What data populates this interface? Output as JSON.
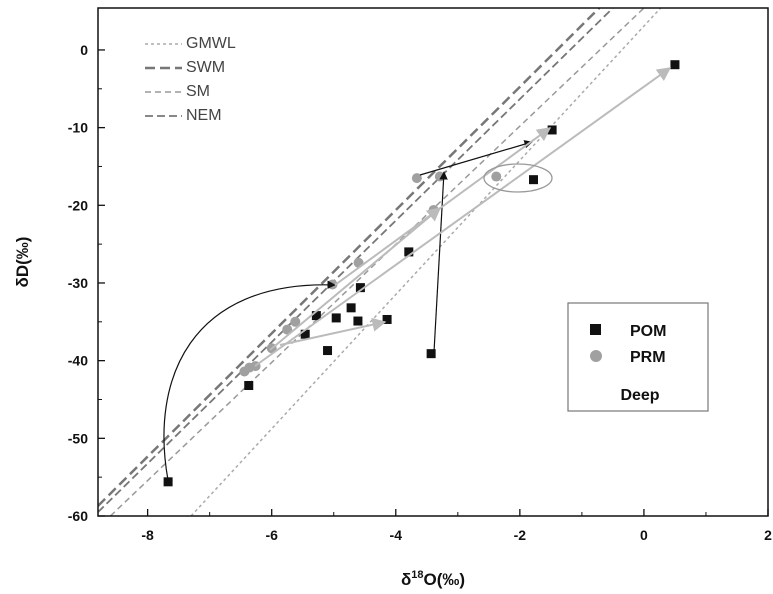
{
  "chart_data": {
    "type": "scatter",
    "xlabel": {
      "prefix": "δ",
      "sup": "18",
      "text": "O(‰)"
    },
    "ylabel": "δD(‰)",
    "xlim": [
      -8.8,
      2
    ],
    "ylim": [
      -60,
      5.4
    ],
    "xticks": [
      -8,
      -6,
      -4,
      -2,
      0,
      2
    ],
    "yticks": [
      0,
      -10,
      -20,
      -30,
      -40,
      -50,
      -60
    ],
    "xminor": [
      -7,
      -5,
      -3,
      -1,
      1
    ],
    "yminor": [
      -5,
      -15,
      -25,
      -35,
      -45,
      -55
    ],
    "lines": [
      {
        "name": "GMWL",
        "color": "#aaaaaa",
        "dash": "3,3",
        "width": 1.5,
        "x": [
          -7.3,
          0.27
        ],
        "values": [
          -60,
          5.4
        ]
      },
      {
        "name": "SWM",
        "color": "#777777",
        "dash": "10,5",
        "width": 2.5,
        "x": [
          -8.8,
          -0.72
        ],
        "values": [
          -58.7,
          5.4
        ]
      },
      {
        "name": "SM",
        "color": "#999999",
        "dash": "6,4",
        "width": 1.5,
        "x": [
          -8.6,
          0
        ],
        "values": [
          -60,
          5.4
        ]
      },
      {
        "name": "NEM",
        "color": "#777777",
        "dash": "8,4",
        "width": 1.8,
        "x": [
          -8.8,
          -0.5
        ],
        "values": [
          -59.5,
          5.4
        ]
      }
    ],
    "series": [
      {
        "name": "POM",
        "color": "#111111",
        "marker": "square",
        "x": [
          -7.67,
          -6.37,
          -5.1,
          -5.28,
          -4.96,
          -4.72,
          -4.61,
          -4.14,
          -4.57,
          -3.79,
          -3.43,
          -1.78,
          -1.48,
          0.5,
          -5.46
        ],
        "values": [
          -55.6,
          -43.2,
          -38.7,
          -34.2,
          -34.5,
          -33.2,
          -34.9,
          -34.7,
          -30.6,
          -26,
          -39.1,
          -16.7,
          -10.3,
          -1.9,
          -36.6
        ]
      },
      {
        "name": "PRM",
        "color": "#a0a0a0",
        "marker": "circle",
        "x": [
          -6.44,
          -6.36,
          -6.26,
          -6,
          -5.75,
          -5.62,
          -5.02,
          -4.6,
          -3.66,
          -3.29,
          -3.39,
          -2.38
        ],
        "values": [
          -41.4,
          -40.9,
          -40.7,
          -38.4,
          -36,
          -35,
          -30.2,
          -27.4,
          -16.5,
          -16.3,
          -20.6,
          -16.3
        ]
      }
    ],
    "legend_note": "Deep"
  }
}
